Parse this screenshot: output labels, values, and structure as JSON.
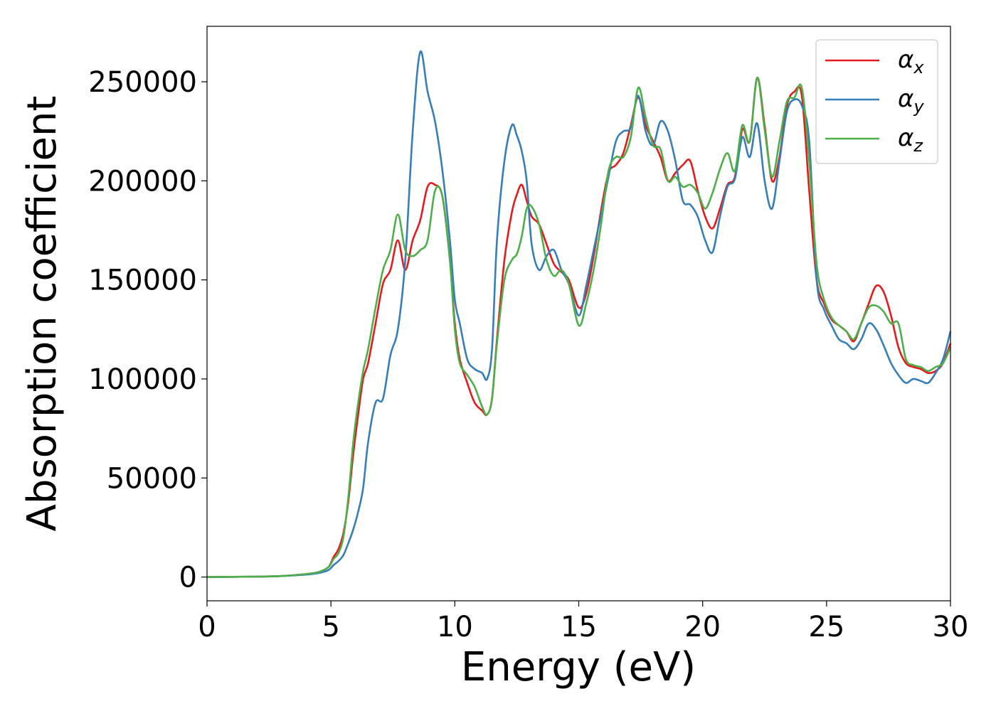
{
  "chart_data": {
    "type": "line",
    "xlabel": "Energy (eV)",
    "ylabel": "Absorption coefficient",
    "xlim": [
      0,
      30
    ],
    "ylim": [
      -12000,
      278000
    ],
    "xticks": [
      0,
      5,
      10,
      15,
      20,
      25,
      30
    ],
    "yticks": [
      0,
      50000,
      100000,
      150000,
      200000,
      250000
    ],
    "xtick_labels": [
      "0",
      "5",
      "10",
      "15",
      "20",
      "25",
      "30"
    ],
    "ytick_labels": [
      "0",
      "50000",
      "100000",
      "150000",
      "200000",
      "250000"
    ],
    "grid": false,
    "legend_position": "top-right",
    "series": [
      {
        "name": "α",
        "subscript": "x",
        "color": "#e41a1c",
        "x": [
          0,
          2,
          3,
          4,
          4.5,
          4.9,
          5.1,
          5.3,
          5.5,
          5.7,
          5.9,
          6.1,
          6.3,
          6.5,
          6.8,
          7.1,
          7.4,
          7.7,
          8.0,
          8.3,
          8.6,
          8.9,
          9.2,
          9.5,
          9.8,
          10.0,
          10.2,
          10.5,
          10.8,
          11.1,
          11.3,
          11.5,
          11.7,
          12.0,
          12.3,
          12.5,
          12.7,
          12.9,
          13.1,
          13.4,
          13.7,
          14.0,
          14.3,
          14.6,
          15.0,
          15.3,
          15.6,
          15.9,
          16.2,
          16.5,
          16.8,
          17.1,
          17.4,
          17.7,
          18.0,
          18.3,
          18.6,
          18.9,
          19.2,
          19.5,
          19.8,
          20.1,
          20.4,
          20.7,
          21.0,
          21.3,
          21.6,
          21.9,
          22.2,
          22.5,
          22.8,
          23.1,
          23.4,
          23.7,
          24.0,
          24.3,
          24.6,
          24.9,
          25.2,
          25.5,
          25.8,
          26.1,
          26.4,
          26.7,
          27.0,
          27.3,
          27.6,
          27.9,
          28.2,
          28.5,
          28.8,
          29.1,
          29.4,
          29.7,
          30.0
        ],
        "y": [
          0,
          200,
          500,
          1500,
          2500,
          5000,
          10000,
          14000,
          22000,
          38000,
          62000,
          82000,
          100000,
          108000,
          128000,
          148000,
          155000,
          170000,
          155000,
          170000,
          180000,
          197000,
          198000,
          192000,
          160000,
          128000,
          110000,
          98000,
          88000,
          84000,
          82000,
          90000,
          120000,
          160000,
          184000,
          193000,
          198000,
          190000,
          182000,
          178000,
          168000,
          158000,
          154000,
          150000,
          136000,
          143000,
          162000,
          185000,
          204000,
          208000,
          214000,
          228000,
          242000,
          228000,
          220000,
          212000,
          200000,
          204000,
          208000,
          210000,
          195000,
          182000,
          176000,
          186000,
          198000,
          202000,
          226000,
          220000,
          252000,
          228000,
          200000,
          212000,
          238000,
          245000,
          243000,
          195000,
          150000,
          138000,
          130000,
          127000,
          124000,
          119000,
          128000,
          138000,
          147000,
          144000,
          132000,
          116000,
          108000,
          106000,
          105000,
          103000,
          104000,
          108000,
          118000
        ]
      },
      {
        "name": "α",
        "subscript": "y",
        "color": "#377eb8",
        "x": [
          0,
          2,
          3,
          4,
          4.5,
          4.9,
          5.1,
          5.3,
          5.5,
          5.7,
          5.9,
          6.1,
          6.3,
          6.5,
          6.8,
          7.1,
          7.4,
          7.7,
          8.0,
          8.3,
          8.6,
          8.9,
          9.2,
          9.5,
          9.8,
          10.0,
          10.2,
          10.5,
          10.8,
          11.1,
          11.3,
          11.5,
          11.7,
          12.0,
          12.3,
          12.5,
          12.7,
          12.9,
          13.1,
          13.4,
          13.7,
          14.0,
          14.3,
          14.6,
          15.0,
          15.3,
          15.6,
          15.9,
          16.2,
          16.5,
          16.8,
          17.1,
          17.4,
          17.7,
          18.0,
          18.3,
          18.6,
          18.9,
          19.2,
          19.5,
          19.8,
          20.1,
          20.4,
          20.7,
          21.0,
          21.3,
          21.6,
          21.9,
          22.2,
          22.5,
          22.8,
          23.1,
          23.4,
          23.7,
          24.0,
          24.3,
          24.6,
          24.9,
          25.2,
          25.5,
          25.8,
          26.1,
          26.4,
          26.7,
          27.0,
          27.3,
          27.6,
          27.9,
          28.2,
          28.5,
          28.8,
          29.1,
          29.4,
          29.7,
          30.0
        ],
        "y": [
          0,
          200,
          500,
          1200,
          2000,
          3500,
          6000,
          8000,
          11000,
          17000,
          24000,
          33000,
          45000,
          68000,
          88000,
          90000,
          112000,
          125000,
          160000,
          225000,
          265000,
          245000,
          230000,
          205000,
          170000,
          140000,
          128000,
          110000,
          105000,
          103000,
          100000,
          115000,
          170000,
          210000,
          228000,
          223000,
          215000,
          200000,
          168000,
          155000,
          162000,
          165000,
          155000,
          148000,
          132000,
          147000,
          165000,
          183000,
          202000,
          220000,
          225000,
          227000,
          243000,
          225000,
          218000,
          230000,
          225000,
          210000,
          190000,
          188000,
          182000,
          170000,
          164000,
          182000,
          197000,
          201000,
          222000,
          212000,
          229000,
          200000,
          186000,
          210000,
          235000,
          241000,
          238000,
          220000,
          150000,
          135000,
          127000,
          120000,
          118000,
          115000,
          120000,
          128000,
          125000,
          117000,
          108000,
          102000,
          98000,
          100000,
          99000,
          98000,
          103000,
          110000,
          124000
        ]
      },
      {
        "name": "α",
        "subscript": "z",
        "color": "#4daf4a",
        "x": [
          0,
          2,
          3,
          4,
          4.5,
          4.9,
          5.1,
          5.3,
          5.5,
          5.7,
          5.9,
          6.1,
          6.3,
          6.5,
          6.8,
          7.1,
          7.4,
          7.7,
          8.0,
          8.3,
          8.6,
          8.9,
          9.2,
          9.5,
          9.8,
          10.0,
          10.2,
          10.5,
          10.8,
          11.1,
          11.3,
          11.5,
          11.7,
          12.0,
          12.3,
          12.5,
          12.7,
          12.9,
          13.1,
          13.4,
          13.7,
          14.0,
          14.3,
          14.6,
          15.0,
          15.3,
          15.6,
          15.9,
          16.2,
          16.5,
          16.8,
          17.1,
          17.4,
          17.7,
          18.0,
          18.3,
          18.6,
          18.9,
          19.2,
          19.5,
          19.8,
          20.1,
          20.4,
          20.7,
          21.0,
          21.3,
          21.6,
          21.9,
          22.2,
          22.5,
          22.8,
          23.1,
          23.4,
          23.7,
          24.0,
          24.3,
          24.6,
          24.9,
          25.2,
          25.5,
          25.8,
          26.1,
          26.4,
          26.7,
          27.0,
          27.3,
          27.6,
          27.9,
          28.2,
          28.5,
          28.8,
          29.1,
          29.4,
          29.7,
          30.0
        ],
        "y": [
          0,
          200,
          500,
          1500,
          2500,
          5000,
          9000,
          12000,
          20000,
          40000,
          68000,
          88000,
          104000,
          115000,
          136000,
          155000,
          165000,
          183000,
          165000,
          162000,
          165000,
          170000,
          195000,
          192000,
          160000,
          125000,
          108000,
          102000,
          96000,
          86000,
          82000,
          90000,
          118000,
          150000,
          160000,
          163000,
          172000,
          186000,
          187000,
          178000,
          160000,
          152000,
          155000,
          148000,
          127000,
          138000,
          155000,
          178000,
          205000,
          212000,
          212000,
          222000,
          247000,
          232000,
          218000,
          216000,
          200000,
          202000,
          197000,
          198000,
          194000,
          186000,
          194000,
          206000,
          214000,
          205000,
          228000,
          220000,
          252000,
          226000,
          202000,
          220000,
          240000,
          242000,
          247000,
          210000,
          158000,
          140000,
          131000,
          127000,
          124000,
          120000,
          128000,
          136000,
          137000,
          134000,
          128000,
          128000,
          110000,
          107000,
          106000,
          104000,
          106000,
          108000,
          116000
        ]
      }
    ]
  }
}
